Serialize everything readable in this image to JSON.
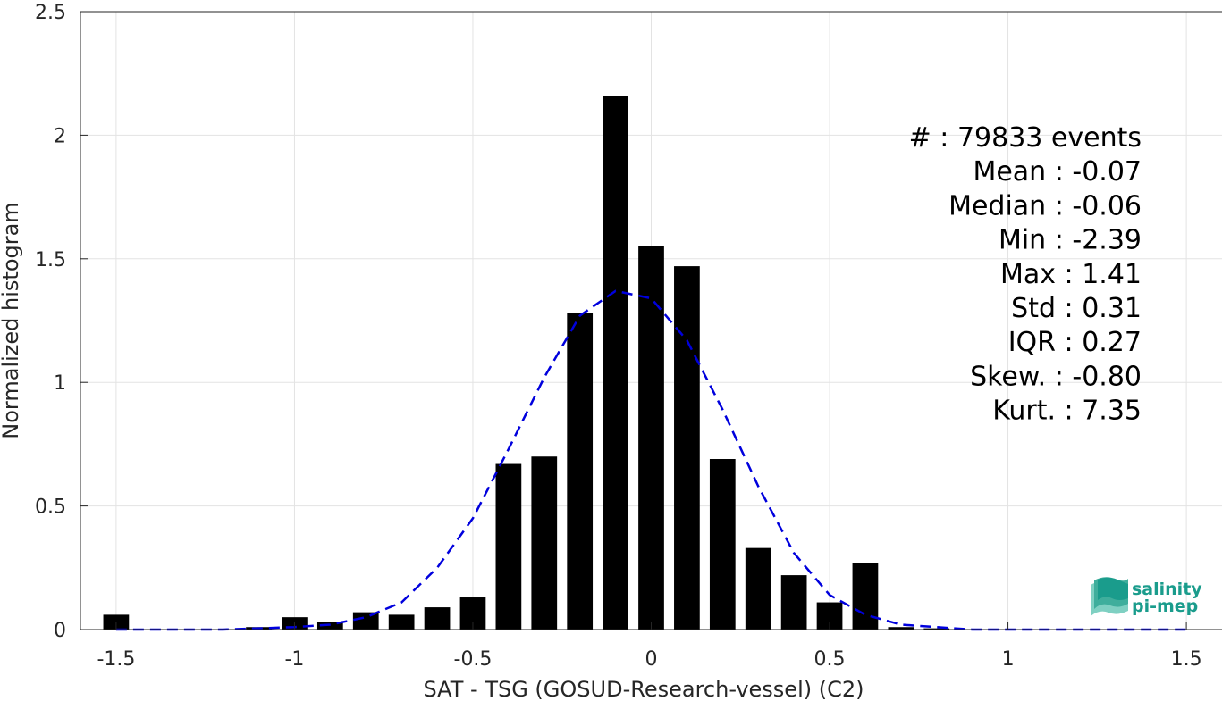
{
  "chart_data": {
    "type": "bar",
    "xlabel": "SAT - TSG (GOSUD-Research-vessel) (C2)",
    "ylabel": "Normalized histogram",
    "xlim": [
      -1.6,
      1.6
    ],
    "ylim": [
      0,
      2.5
    ],
    "xticks": [
      -1.5,
      -1,
      -0.5,
      0,
      0.5,
      1,
      1.5
    ],
    "xtick_labels": [
      "-1.5",
      "-1",
      "-0.5",
      "0",
      "0.5",
      "1",
      "1.5"
    ],
    "yticks": [
      0,
      0.5,
      1,
      1.5,
      2,
      2.5
    ],
    "ytick_labels": [
      "0",
      "0.5",
      "1",
      "1.5",
      "2",
      "2.5"
    ],
    "grid": true,
    "bar_color": "#000000",
    "bin_width": 0.1,
    "bins": [
      {
        "x": -1.5,
        "y": 0.06
      },
      {
        "x": -1.4,
        "y": 0.0
      },
      {
        "x": -1.3,
        "y": 0.0
      },
      {
        "x": -1.2,
        "y": 0.0
      },
      {
        "x": -1.1,
        "y": 0.01
      },
      {
        "x": -1.0,
        "y": 0.05
      },
      {
        "x": -0.9,
        "y": 0.03
      },
      {
        "x": -0.8,
        "y": 0.07
      },
      {
        "x": -0.7,
        "y": 0.06
      },
      {
        "x": -0.6,
        "y": 0.09
      },
      {
        "x": -0.5,
        "y": 0.13
      },
      {
        "x": -0.4,
        "y": 0.67
      },
      {
        "x": -0.3,
        "y": 0.7
      },
      {
        "x": -0.2,
        "y": 1.28
      },
      {
        "x": -0.1,
        "y": 2.16
      },
      {
        "x": 0.0,
        "y": 1.55
      },
      {
        "x": 0.1,
        "y": 1.47
      },
      {
        "x": 0.2,
        "y": 0.69
      },
      {
        "x": 0.3,
        "y": 0.33
      },
      {
        "x": 0.4,
        "y": 0.22
      },
      {
        "x": 0.5,
        "y": 0.11
      },
      {
        "x": 0.6,
        "y": 0.27
      },
      {
        "x": 0.7,
        "y": 0.01
      },
      {
        "x": 0.8,
        "y": 0.005
      },
      {
        "x": 0.9,
        "y": 0.0
      },
      {
        "x": 1.0,
        "y": 0.0
      },
      {
        "x": 1.1,
        "y": 0.0
      },
      {
        "x": 1.2,
        "y": 0.0
      },
      {
        "x": 1.3,
        "y": 0.0
      },
      {
        "x": 1.4,
        "y": 0.0
      },
      {
        "x": 1.5,
        "y": 0.0
      }
    ],
    "fit_curve": {
      "color": "#0000dd",
      "style": "dashed",
      "x": [
        -1.5,
        -1.2,
        -1.0,
        -0.9,
        -0.8,
        -0.7,
        -0.6,
        -0.5,
        -0.4,
        -0.3,
        -0.2,
        -0.1,
        0.0,
        0.1,
        0.2,
        0.3,
        0.4,
        0.5,
        0.6,
        0.7,
        0.8,
        0.9,
        1.0,
        1.2,
        1.5
      ],
      "y": [
        0.0,
        0.0,
        0.01,
        0.02,
        0.05,
        0.11,
        0.25,
        0.45,
        0.73,
        1.02,
        1.27,
        1.37,
        1.34,
        1.17,
        0.89,
        0.58,
        0.31,
        0.14,
        0.06,
        0.02,
        0.01,
        0.0,
        0.0,
        0.0,
        0.0
      ]
    },
    "stats": [
      "#  : 79833 events",
      "Mean : -0.07",
      "Median : -0.06",
      "Min : -2.39",
      "Max : 1.41",
      "Std : 0.31",
      "IQR : 0.27",
      "Skew. : -0.80",
      "Kurt. : 7.35"
    ]
  },
  "logo": {
    "line1": "salinity",
    "line2": "pi-mep",
    "color": "#1a9c8c"
  }
}
